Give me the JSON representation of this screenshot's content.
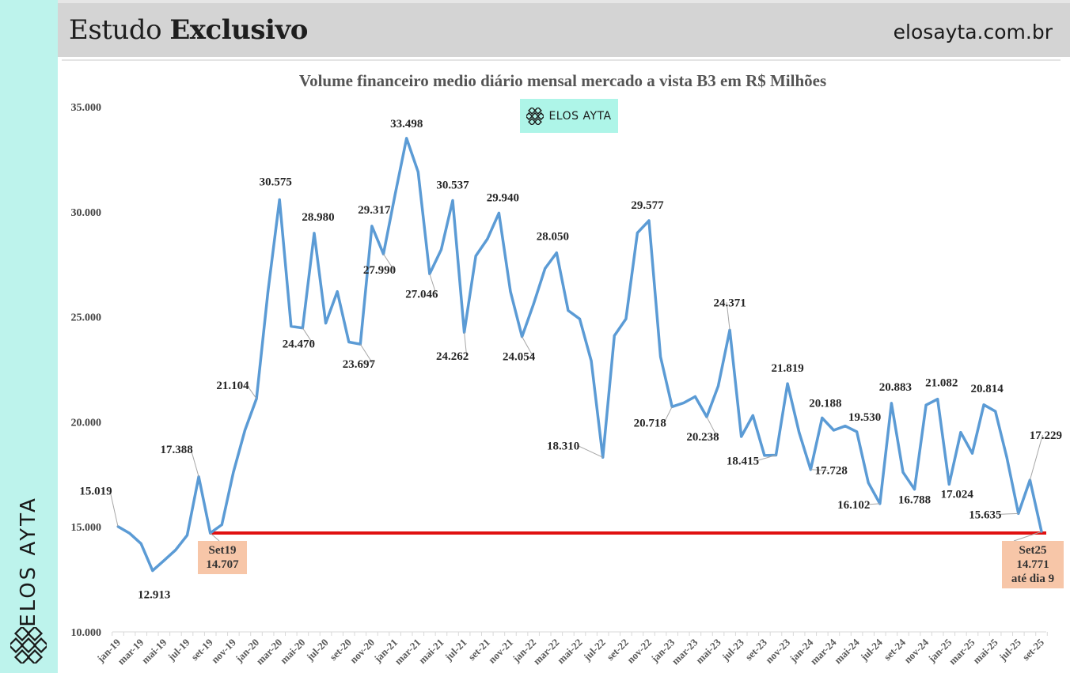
{
  "header": {
    "title_regular": "Estudo",
    "title_bold": "Exclusivo",
    "site": "elosayta.com.br"
  },
  "sidebar": {
    "brand": "ELOS AYTA",
    "logo_icon": "lattice-logo-icon"
  },
  "badge": {
    "text": "ELOS AYTA",
    "icon": "lattice-logo-icon",
    "color": "#aef5e8"
  },
  "colors": {
    "line": "#5b9bd5",
    "reference_line": "#e01010",
    "callout_bg": "#f7c6a8",
    "sidebar_bg": "#bdf3ec",
    "header_bg": "#d4d4d4"
  },
  "chart_data": {
    "type": "line",
    "title": "Volume financeiro medio diário mensal mercado a vista B3 em R$ Milhões",
    "xlabel": "",
    "ylabel": "",
    "ylim": [
      10000,
      35000
    ],
    "yticks": [
      10000,
      15000,
      20000,
      25000,
      30000,
      35000
    ],
    "ytick_labels": [
      "10.000",
      "15.000",
      "20.000",
      "25.000",
      "30.000",
      "35.000"
    ],
    "grid": false,
    "legend": "none",
    "x_tick_labels": [
      "jan-19",
      "mar-19",
      "mai-19",
      "jul-19",
      "set-19",
      "nov-19",
      "jan-20",
      "mar-20",
      "mai-20",
      "jul-20",
      "set-20",
      "nov-20",
      "jan-21",
      "mar-21",
      "mai-21",
      "jul-21",
      "set-21",
      "nov-21",
      "jan-22",
      "mar-22",
      "mai-22",
      "jul-22",
      "set-22",
      "nov-22",
      "jan-23",
      "mar-23",
      "mai-23",
      "jul-23",
      "set-23",
      "nov-23",
      "jan-24",
      "mar-24",
      "mai-24",
      "jul-24",
      "set-24",
      "nov-24",
      "jan-25",
      "mar-25",
      "mai-25",
      "jul-25",
      "set-25"
    ],
    "series": [
      {
        "name": "Volume financeiro medio diário mensal",
        "start": "jan-19",
        "end": "set-25",
        "values": [
          15019,
          14700,
          14200,
          12913,
          13400,
          13900,
          14600,
          17388,
          14707,
          15100,
          17600,
          19600,
          21104,
          26200,
          30575,
          24550,
          24470,
          28980,
          24700,
          26200,
          23800,
          23697,
          29317,
          27990,
          30800,
          33498,
          31900,
          27046,
          28200,
          30537,
          24262,
          27900,
          28700,
          29940,
          26200,
          24054,
          25600,
          27300,
          28050,
          25300,
          24900,
          22900,
          18310,
          24100,
          24900,
          29000,
          29577,
          23100,
          20718,
          20900,
          21200,
          20238,
          21700,
          24371,
          19300,
          20300,
          18400,
          18415,
          21819,
          19500,
          17728,
          20188,
          19600,
          19800,
          19530,
          17100,
          16102,
          20883,
          17600,
          16788,
          20800,
          21082,
          17024,
          19500,
          18500,
          20814,
          20500,
          18300,
          15635,
          17229,
          14771
        ]
      }
    ],
    "data_labels": [
      {
        "index": 0,
        "text": "15.019"
      },
      {
        "index": 3,
        "text": "12.913"
      },
      {
        "index": 7,
        "text": "17.388"
      },
      {
        "index": 12,
        "text": "21.104"
      },
      {
        "index": 14,
        "text": "30.575"
      },
      {
        "index": 16,
        "text": "24.470"
      },
      {
        "index": 17,
        "text": "28.980"
      },
      {
        "index": 21,
        "text": "23.697"
      },
      {
        "index": 22,
        "text": "29.317"
      },
      {
        "index": 23,
        "text": "27.990"
      },
      {
        "index": 25,
        "text": "33.498"
      },
      {
        "index": 27,
        "text": "27.046"
      },
      {
        "index": 29,
        "text": "30.537"
      },
      {
        "index": 30,
        "text": "24.262"
      },
      {
        "index": 33,
        "text": "29.940"
      },
      {
        "index": 35,
        "text": "24.054"
      },
      {
        "index": 38,
        "text": "28.050"
      },
      {
        "index": 42,
        "text": "18.310"
      },
      {
        "index": 46,
        "text": "29.577"
      },
      {
        "index": 48,
        "text": "20.718"
      },
      {
        "index": 51,
        "text": "20.238"
      },
      {
        "index": 53,
        "text": "24.371"
      },
      {
        "index": 57,
        "text": "18.415"
      },
      {
        "index": 58,
        "text": "21.819"
      },
      {
        "index": 60,
        "text": "17.728"
      },
      {
        "index": 61,
        "text": "20.188"
      },
      {
        "index": 64,
        "text": "19.530"
      },
      {
        "index": 66,
        "text": "16.102"
      },
      {
        "index": 67,
        "text": "20.883"
      },
      {
        "index": 69,
        "text": "16.788"
      },
      {
        "index": 71,
        "text": "21.082"
      },
      {
        "index": 72,
        "text": "17.024"
      },
      {
        "index": 75,
        "text": "20.814"
      },
      {
        "index": 78,
        "text": "15.635"
      },
      {
        "index": 79,
        "text": "17.229"
      }
    ],
    "reference_line": {
      "value": 14707,
      "from": "set-19",
      "to": "set-25"
    },
    "callouts": [
      {
        "index": 8,
        "lines": [
          "Set19",
          "14.707"
        ]
      },
      {
        "index": 80,
        "lines": [
          "Set25",
          "14.771",
          "até dia 9"
        ]
      }
    ]
  }
}
